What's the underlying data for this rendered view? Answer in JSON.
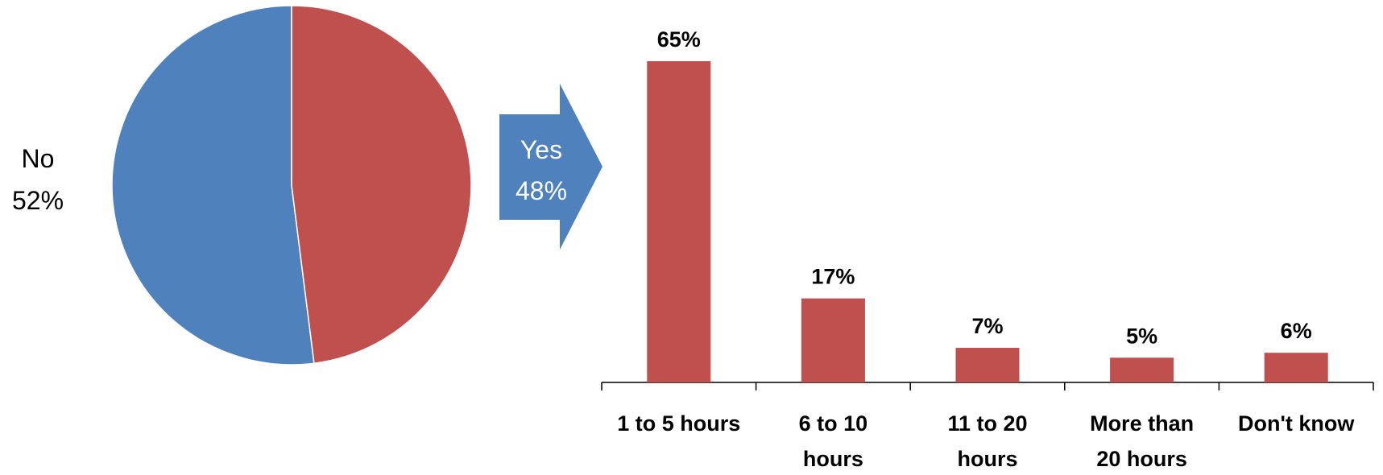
{
  "colors": {
    "no": "#4F81BD",
    "yes": "#C0504D",
    "bar": "#C0504D",
    "arrow": "#4F81BD",
    "axis": "#000000"
  },
  "chart_data": [
    {
      "type": "pie",
      "slices": [
        {
          "label": "No",
          "value": 52,
          "value_label": "52%",
          "color": "#4F81BD"
        },
        {
          "label": "Yes",
          "value": 48,
          "value_label": "48%",
          "color": "#C0504D"
        }
      ]
    },
    {
      "type": "bar",
      "categories": [
        [
          "1 to 5 hours"
        ],
        [
          "6 to 10",
          "hours"
        ],
        [
          "11 to 20",
          "hours"
        ],
        [
          "More than",
          "20 hours"
        ],
        [
          "Don't know"
        ]
      ],
      "values": [
        65,
        17,
        7,
        5,
        6
      ],
      "value_labels": [
        "65%",
        "17%",
        "7%",
        "5%",
        "6%"
      ],
      "ylim": [
        0,
        65
      ]
    }
  ]
}
